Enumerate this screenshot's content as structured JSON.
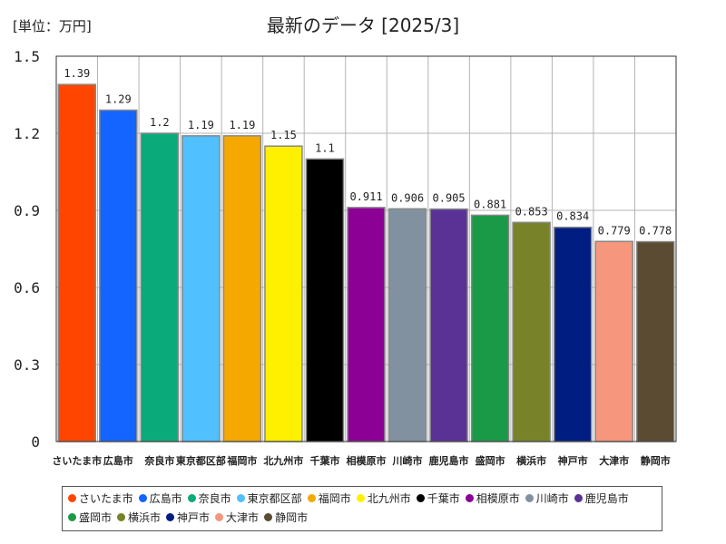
{
  "unit_label": "[単位：万円]",
  "chart_data": {
    "type": "bar",
    "title": "最新のデータ [2025/3]",
    "ylim": [
      0,
      1.5
    ],
    "yticks": [
      "0",
      "0.3",
      "0.6",
      "0.9",
      "1.2",
      "1.5"
    ],
    "ytick_values": [
      0,
      0.3,
      0.6,
      0.9,
      1.2,
      1.5
    ],
    "grid": true,
    "legend_position": "bottom",
    "categories": [
      "さいたま市",
      "広島市",
      "奈良市",
      "東京都区部",
      "福岡市",
      "北九州市",
      "千葉市",
      "相模原市",
      "川崎市",
      "鹿児島市",
      "盛岡市",
      "横浜市",
      "神戸市",
      "大津市",
      "静岡市"
    ],
    "values": [
      1.39,
      1.29,
      1.2,
      1.19,
      1.19,
      1.15,
      1.1,
      0.911,
      0.906,
      0.905,
      0.881,
      0.853,
      0.834,
      0.779,
      0.778
    ],
    "value_labels": [
      "1.39",
      "1.29",
      "1.2",
      "1.19",
      "1.19",
      "1.15",
      "1.1",
      "0.911",
      "0.906",
      "0.905",
      "0.881",
      "0.853",
      "0.834",
      "0.779",
      "0.778"
    ],
    "colors": [
      "#ff4500",
      "#1464ff",
      "#0aaa7a",
      "#50c0ff",
      "#f5a800",
      "#fff000",
      "#000000",
      "#8c0096",
      "#8291a0",
      "#5a3296",
      "#1a9a46",
      "#788228",
      "#001e82",
      "#f5967d",
      "#5a4b32"
    ]
  }
}
